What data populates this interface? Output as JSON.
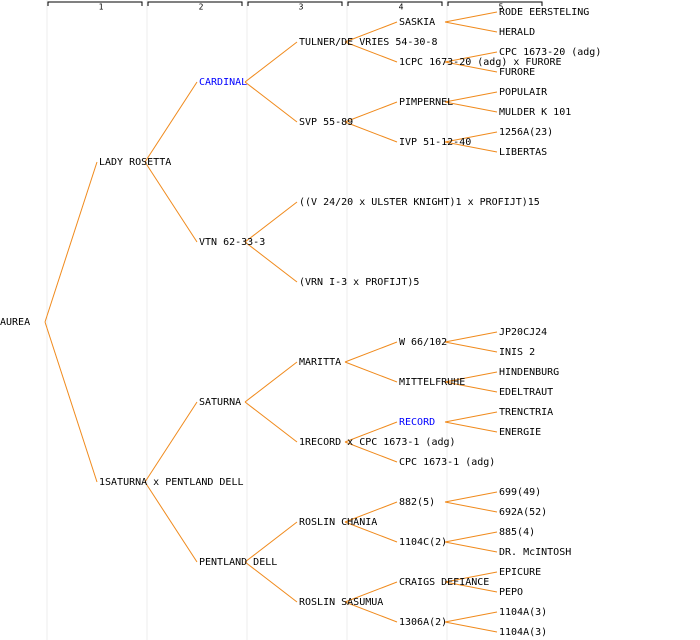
{
  "columns": [
    "1",
    "2",
    "3",
    "4",
    "5"
  ],
  "pedigree": {
    "label": "AUREA",
    "children": [
      {
        "label": "LADY ROSETTA",
        "children": [
          {
            "label": "CARDINAL",
            "color": "#0000ff",
            "children": [
              {
                "label": "TULNER/DE VRIES 54-30-8",
                "children": [
                  {
                    "label": "SASKIA",
                    "children": [
                      {
                        "label": "RODE EERSTELING"
                      },
                      {
                        "label": "HERALD"
                      }
                    ]
                  },
                  {
                    "label": "1CPC 1673-20 (adg) x FURORE",
                    "children": [
                      {
                        "label": "CPC 1673-20 (adg)"
                      },
                      {
                        "label": "FURORE"
                      }
                    ]
                  }
                ]
              },
              {
                "label": "SVP 55-89",
                "children": [
                  {
                    "label": "PIMPERNEL",
                    "children": [
                      {
                        "label": "POPULAIR"
                      },
                      {
                        "label": "MULDER K 101"
                      }
                    ]
                  },
                  {
                    "label": "IVP 51-12-40",
                    "children": [
                      {
                        "label": "1256A(23)"
                      },
                      {
                        "label": "LIBERTAS"
                      }
                    ]
                  }
                ]
              }
            ]
          },
          {
            "label": "VTN 62-33-3",
            "children": [
              {
                "label": "((V 24/20 x ULSTER KNIGHT)1 x PROFIJT)15"
              },
              {
                "label": "(VRN I-3 x PROFIJT)5"
              }
            ]
          }
        ]
      },
      {
        "label": "1SATURNA x PENTLAND DELL",
        "children": [
          {
            "label": "SATURNA",
            "children": [
              {
                "label": "MARITTA",
                "children": [
                  {
                    "label": "W 66/102",
                    "children": [
                      {
                        "label": "JP20CJ24"
                      },
                      {
                        "label": "INIS 2"
                      }
                    ]
                  },
                  {
                    "label": "MITTELFRUHE",
                    "children": [
                      {
                        "label": "HINDENBURG"
                      },
                      {
                        "label": "EDELTRAUT"
                      }
                    ]
                  }
                ]
              },
              {
                "label": "1RECORD x CPC 1673-1 (adg)",
                "children": [
                  {
                    "label": "RECORD",
                    "color": "#0000ff",
                    "children": [
                      {
                        "label": "TRENCTRIA"
                      },
                      {
                        "label": "ENERGIE"
                      }
                    ]
                  },
                  {
                    "label": "CPC 1673-1 (adg)"
                  }
                ]
              }
            ]
          },
          {
            "label": "PENTLAND DELL",
            "children": [
              {
                "label": "ROSLIN CHANIA",
                "children": [
                  {
                    "label": "882(5)",
                    "children": [
                      {
                        "label": "699(49)"
                      },
                      {
                        "label": "692A(52)"
                      }
                    ]
                  },
                  {
                    "label": "1104C(2)",
                    "children": [
                      {
                        "label": "885(4)"
                      },
                      {
                        "label": "DR. McINTOSH"
                      }
                    ]
                  }
                ]
              },
              {
                "label": "ROSLIN SASUMUA",
                "children": [
                  {
                    "label": "CRAIGS DEFIANCE",
                    "children": [
                      {
                        "label": "EPICURE"
                      },
                      {
                        "label": "PEPO"
                      }
                    ]
                  },
                  {
                    "label": "1306A(2)",
                    "children": [
                      {
                        "label": "1104A(3)"
                      },
                      {
                        "label": "1104A(3)"
                      }
                    ]
                  }
                ]
              }
            ]
          }
        ]
      }
    ]
  }
}
